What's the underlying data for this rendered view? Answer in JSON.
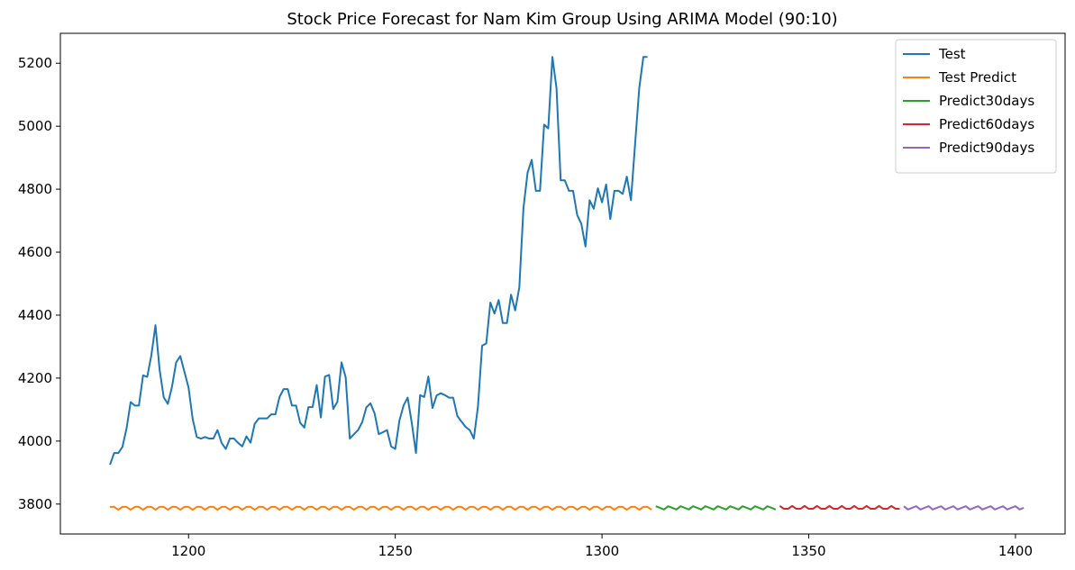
{
  "chart_data": {
    "type": "line",
    "title": "Stock Price Forecast for Nam Kim Group Using ARIMA Model (90:10)",
    "xlabel": "",
    "ylabel": "",
    "xlim": [
      1169,
      1412
    ],
    "ylim": [
      3705,
      5295
    ],
    "x_ticks": [
      1200,
      1250,
      1300,
      1350,
      1400
    ],
    "y_ticks": [
      3800,
      4000,
      4200,
      4400,
      4600,
      4800,
      5000,
      5200
    ],
    "grid": false,
    "legend_position": "top-right",
    "series": [
      {
        "name": "Test",
        "color": "#1f77b4",
        "x_start": 1181,
        "values": [
          3925,
          3962,
          3962,
          3981,
          4040,
          4124,
          4113,
          4113,
          4209,
          4204,
          4272,
          4368,
          4227,
          4139,
          4118,
          4173,
          4250,
          4270,
          4220,
          4170,
          4070,
          4013,
          4008,
          4013,
          4008,
          4008,
          4035,
          3994,
          3975,
          4008,
          4008,
          3994,
          3983,
          4015,
          3995,
          4055,
          4072,
          4072,
          4072,
          4085,
          4085,
          4140,
          4165,
          4165,
          4113,
          4113,
          4058,
          4043,
          4108,
          4108,
          4178,
          4075,
          4205,
          4210,
          4102,
          4125,
          4250,
          4203,
          4008,
          4022,
          4035,
          4060,
          4107,
          4120,
          4088,
          4022,
          4028,
          4035,
          3983,
          3975,
          4065,
          4113,
          4138,
          4057,
          3962,
          4146,
          4140,
          4205,
          4105,
          4145,
          4152,
          4146,
          4138,
          4138,
          4080,
          4062,
          4045,
          4035,
          4008,
          4110,
          4303,
          4310,
          4440,
          4405,
          4448,
          4375,
          4375,
          4465,
          4415,
          4488,
          4740,
          4853,
          4893,
          4795,
          4795,
          5005,
          4993,
          5220,
          5120,
          4828,
          4828,
          4795,
          4795,
          4718,
          4690,
          4618,
          4765,
          4738,
          4803,
          4758,
          4815,
          4705,
          4795,
          4795,
          4785,
          4840,
          4765,
          4943,
          5120,
          5220,
          5220
        ]
      },
      {
        "name": "Test Predict",
        "color": "#ff7f0e",
        "x_start": 1181,
        "count": 132,
        "mean": 3788,
        "amplitude": 6,
        "period": 3
      },
      {
        "name": "Predict30days",
        "color": "#2ca02c",
        "x_start": 1313,
        "count": 30,
        "mean": 3788,
        "amplitude": 6,
        "period": 3
      },
      {
        "name": "Predict60days",
        "color": "#d62728",
        "x_start": 1343,
        "count": 30,
        "mean": 3788,
        "amplitude": 6,
        "period": 3
      },
      {
        "name": "Predict90days",
        "color": "#9467bd",
        "x_start": 1373,
        "count": 30,
        "mean": 3788,
        "amplitude": 6,
        "period": 3
      }
    ]
  }
}
